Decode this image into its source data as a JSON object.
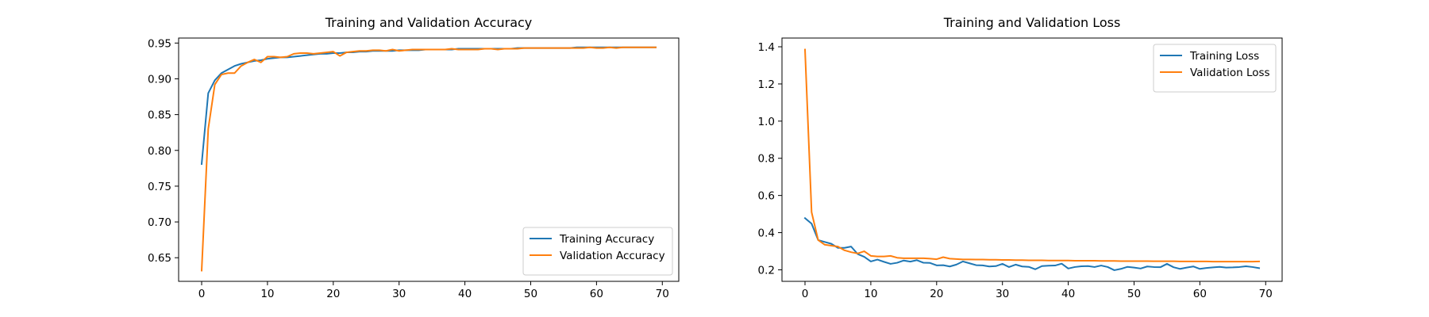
{
  "chart_data": [
    {
      "type": "line",
      "title": "Training and Validation Accuracy",
      "xlabel": "",
      "ylabel": "",
      "xlim": [
        -3.5,
        72.5
      ],
      "ylim": [
        0.617,
        0.957
      ],
      "xticks": [
        0,
        10,
        20,
        30,
        40,
        50,
        60,
        70
      ],
      "yticks": [
        0.65,
        0.7,
        0.75,
        0.8,
        0.85,
        0.9,
        0.95
      ],
      "ytick_labels": [
        "0.65",
        "0.70",
        "0.75",
        "0.80",
        "0.85",
        "0.90",
        "0.95"
      ],
      "grid": false,
      "legend_position": "lower right",
      "x": [
        0,
        1,
        2,
        3,
        4,
        5,
        6,
        7,
        8,
        9,
        10,
        11,
        12,
        13,
        14,
        15,
        16,
        17,
        18,
        19,
        20,
        21,
        22,
        23,
        24,
        25,
        26,
        27,
        28,
        29,
        30,
        31,
        32,
        33,
        34,
        35,
        36,
        37,
        38,
        39,
        40,
        41,
        42,
        43,
        44,
        45,
        46,
        47,
        48,
        49,
        50,
        51,
        52,
        53,
        54,
        55,
        56,
        57,
        58,
        59,
        60,
        61,
        62,
        63,
        64,
        65,
        66,
        67,
        68,
        69
      ],
      "series": [
        {
          "name": "Training Accuracy",
          "color": "#1f77b4",
          "values": [
            0.781,
            0.88,
            0.898,
            0.908,
            0.913,
            0.918,
            0.921,
            0.923,
            0.925,
            0.926,
            0.928,
            0.929,
            0.93,
            0.93,
            0.931,
            0.932,
            0.933,
            0.934,
            0.935,
            0.935,
            0.936,
            0.936,
            0.937,
            0.937,
            0.938,
            0.938,
            0.939,
            0.939,
            0.939,
            0.939,
            0.94,
            0.94,
            0.94,
            0.94,
            0.941,
            0.941,
            0.941,
            0.941,
            0.941,
            0.942,
            0.942,
            0.942,
            0.942,
            0.942,
            0.942,
            0.942,
            0.942,
            0.942,
            0.943,
            0.943,
            0.943,
            0.943,
            0.943,
            0.943,
            0.943,
            0.943,
            0.943,
            0.944,
            0.944,
            0.944,
            0.944,
            0.944,
            0.944,
            0.944,
            0.944,
            0.944,
            0.944,
            0.944,
            0.944,
            0.944
          ]
        },
        {
          "name": "Validation Accuracy",
          "color": "#ff7f0e",
          "values": [
            0.632,
            0.83,
            0.892,
            0.906,
            0.908,
            0.908,
            0.918,
            0.923,
            0.927,
            0.923,
            0.931,
            0.931,
            0.93,
            0.931,
            0.935,
            0.936,
            0.936,
            0.935,
            0.936,
            0.937,
            0.938,
            0.932,
            0.937,
            0.938,
            0.939,
            0.939,
            0.94,
            0.94,
            0.939,
            0.941,
            0.939,
            0.94,
            0.941,
            0.941,
            0.941,
            0.941,
            0.941,
            0.941,
            0.942,
            0.941,
            0.941,
            0.941,
            0.941,
            0.942,
            0.942,
            0.941,
            0.942,
            0.942,
            0.942,
            0.943,
            0.943,
            0.943,
            0.943,
            0.943,
            0.943,
            0.943,
            0.943,
            0.943,
            0.943,
            0.944,
            0.943,
            0.943,
            0.944,
            0.943,
            0.944,
            0.944,
            0.944,
            0.944,
            0.944,
            0.944
          ]
        }
      ]
    },
    {
      "type": "line",
      "title": "Training and Validation Loss",
      "xlabel": "",
      "ylabel": "",
      "xlim": [
        -3.5,
        72.5
      ],
      "ylim": [
        0.138,
        1.447
      ],
      "xticks": [
        0,
        10,
        20,
        30,
        40,
        50,
        60,
        70
      ],
      "yticks": [
        0.2,
        0.4,
        0.6,
        0.8,
        1.0,
        1.2,
        1.4
      ],
      "ytick_labels": [
        "0.2",
        "0.4",
        "0.6",
        "0.8",
        "1.0",
        "1.2",
        "1.4"
      ],
      "grid": false,
      "legend_position": "upper right",
      "x": [
        0,
        1,
        2,
        3,
        4,
        5,
        6,
        7,
        8,
        9,
        10,
        11,
        12,
        13,
        14,
        15,
        16,
        17,
        18,
        19,
        20,
        21,
        22,
        23,
        24,
        25,
        26,
        27,
        28,
        29,
        30,
        31,
        32,
        33,
        34,
        35,
        36,
        37,
        38,
        39,
        40,
        41,
        42,
        43,
        44,
        45,
        46,
        47,
        48,
        49,
        50,
        51,
        52,
        53,
        54,
        55,
        56,
        57,
        58,
        59,
        60,
        61,
        62,
        63,
        64,
        65,
        66,
        67,
        68,
        69
      ],
      "series": [
        {
          "name": "Training Loss",
          "color": "#1f77b4",
          "values": [
            0.478,
            0.448,
            0.36,
            0.35,
            0.34,
            0.318,
            0.318,
            0.325,
            0.285,
            0.27,
            0.245,
            0.255,
            0.243,
            0.232,
            0.238,
            0.25,
            0.244,
            0.252,
            0.238,
            0.237,
            0.224,
            0.225,
            0.218,
            0.228,
            0.245,
            0.235,
            0.225,
            0.224,
            0.218,
            0.22,
            0.232,
            0.215,
            0.228,
            0.218,
            0.216,
            0.203,
            0.22,
            0.222,
            0.223,
            0.233,
            0.207,
            0.215,
            0.219,
            0.22,
            0.215,
            0.223,
            0.215,
            0.198,
            0.205,
            0.216,
            0.212,
            0.207,
            0.218,
            0.215,
            0.214,
            0.232,
            0.214,
            0.205,
            0.212,
            0.218,
            0.205,
            0.21,
            0.213,
            0.216,
            0.212,
            0.213,
            0.215,
            0.219,
            0.215,
            0.209
          ]
        },
        {
          "name": "Validation Loss",
          "color": "#ff7f0e",
          "values": [
            1.385,
            0.51,
            0.36,
            0.335,
            0.33,
            0.325,
            0.305,
            0.295,
            0.288,
            0.3,
            0.275,
            0.272,
            0.272,
            0.275,
            0.265,
            0.262,
            0.262,
            0.262,
            0.262,
            0.26,
            0.257,
            0.268,
            0.26,
            0.258,
            0.256,
            0.256,
            0.255,
            0.255,
            0.254,
            0.254,
            0.253,
            0.253,
            0.252,
            0.252,
            0.251,
            0.251,
            0.251,
            0.25,
            0.25,
            0.25,
            0.25,
            0.249,
            0.249,
            0.249,
            0.249,
            0.248,
            0.248,
            0.248,
            0.247,
            0.247,
            0.247,
            0.247,
            0.247,
            0.246,
            0.246,
            0.246,
            0.246,
            0.245,
            0.245,
            0.245,
            0.245,
            0.245,
            0.244,
            0.244,
            0.244,
            0.244,
            0.244,
            0.244,
            0.244,
            0.245
          ]
        }
      ]
    }
  ]
}
